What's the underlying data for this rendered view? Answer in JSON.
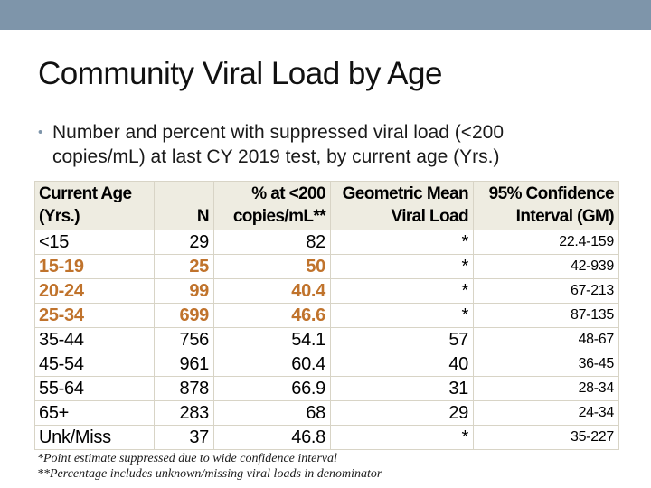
{
  "slide": {
    "title": "Community Viral Load by Age",
    "bullet": {
      "glyph": "•",
      "line1": "Number and percent with suppressed viral load (<200",
      "line2": "copies/mL) at last CY 2019 test, by current age (Yrs.)"
    }
  },
  "colors": {
    "top_bar": "#7E95AA",
    "table_header_bg": "#EEECE1",
    "highlight_text": "#C0732C",
    "table_border": "#D8D4C6",
    "bullet": "#7E95AA"
  },
  "table": {
    "header": [
      {
        "line1": "Current Age",
        "line2": "(Yrs.)"
      },
      {
        "line1": "",
        "line2": "N"
      },
      {
        "line1": "% at <200",
        "line2": "copies/mL**"
      },
      {
        "line1": "Geometric Mean",
        "line2": "Viral Load"
      },
      {
        "line1": "95% Confidence",
        "line2": "Interval (GM)"
      }
    ],
    "rows": [
      {
        "age": "<15",
        "n": "29",
        "pct": "82",
        "gm": "*",
        "ci": "22.4-159",
        "highlight": false
      },
      {
        "age": "15-19",
        "n": "25",
        "pct": "50",
        "gm": "*",
        "ci": "42-939",
        "highlight": true
      },
      {
        "age": "20-24",
        "n": "99",
        "pct": "40.4",
        "gm": "*",
        "ci": "67-213",
        "highlight": true
      },
      {
        "age": "25-34",
        "n": "699",
        "pct": "46.6",
        "gm": "*",
        "ci": "87-135",
        "highlight": true
      },
      {
        "age": "35-44",
        "n": "756",
        "pct": "54.1",
        "gm": "57",
        "ci": "48-67",
        "highlight": false
      },
      {
        "age": "45-54",
        "n": "961",
        "pct": "60.4",
        "gm": "40",
        "ci": "36-45",
        "highlight": false
      },
      {
        "age": "55-64",
        "n": "878",
        "pct": "66.9",
        "gm": "31",
        "ci": "28-34",
        "highlight": false
      },
      {
        "age": "65+",
        "n": "283",
        "pct": "68",
        "gm": "29",
        "ci": "24-34",
        "highlight": false
      },
      {
        "age": "Unk/Miss",
        "n": "37",
        "pct": "46.8",
        "gm": "*",
        "ci": "35-227",
        "highlight": false
      }
    ]
  },
  "footnotes": {
    "line1": "*Point estimate suppressed due to wide confidence interval",
    "line2": "**Percentage includes unknown/missing viral loads in denominator"
  }
}
